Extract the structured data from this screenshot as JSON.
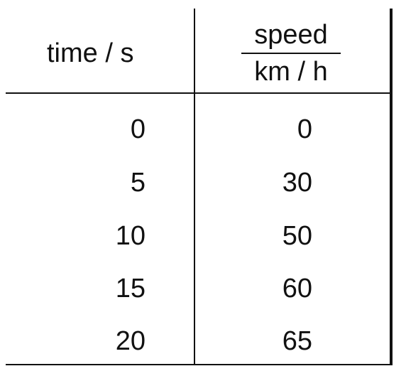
{
  "table": {
    "headers": {
      "time": "time / s",
      "speed_numerator": "speed",
      "speed_denominator": "km / h"
    },
    "rows": [
      {
        "time": "0",
        "speed": "0"
      },
      {
        "time": "5",
        "speed": "30"
      },
      {
        "time": "10",
        "speed": "50"
      },
      {
        "time": "15",
        "speed": "60"
      },
      {
        "time": "20",
        "speed": "65"
      }
    ]
  }
}
